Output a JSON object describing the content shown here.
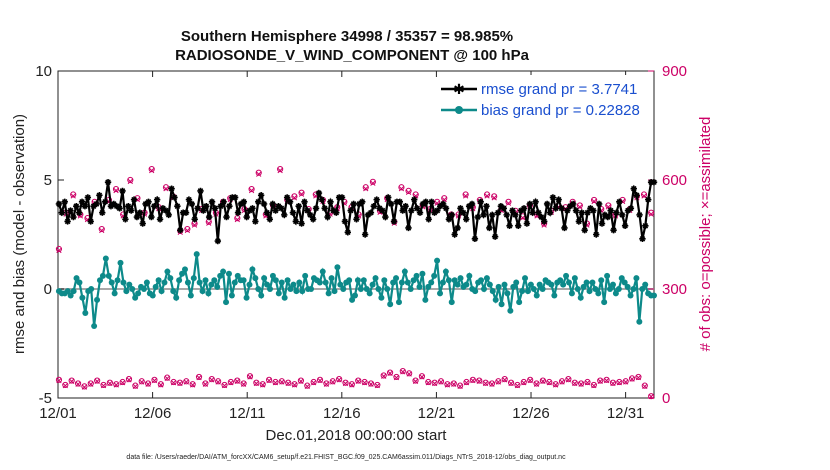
{
  "chart_data": {
    "type": "line",
    "title_line1": "Southern Hemisphere 34998 / 35357 = 98.985%",
    "title_line2": "RADIOSONDE_V_WIND_COMPONENT @ 100 hPa",
    "xlabel": "Dec.01,2018 00:00:00 start",
    "ylabel": "rmse and bias (model - observation)",
    "y2label": "# of obs: o=possible; ×=assimilated",
    "footnote": "data file: /Users/raeder/DAI/ATM_forcXX/CAM6_setup/f.e21.FHIST_BGC.f09_025.CAM6assim.011/Diags_NTrS_2018-12/obs_diag_output.nc",
    "xlim": [
      0,
      31.5
    ],
    "ylim": [
      -5,
      10
    ],
    "y2lim": [
      0,
      900
    ],
    "xticks": [
      0,
      5,
      10,
      15,
      20,
      25,
      30
    ],
    "xtick_labels": [
      "12/01",
      "12/06",
      "12/11",
      "12/16",
      "12/21",
      "12/26",
      "12/31"
    ],
    "yticks": [
      -5,
      0,
      5,
      10
    ],
    "ytick_labels": [
      "-5",
      "0",
      "5",
      "10"
    ],
    "y2ticks": [
      0,
      300,
      600,
      900
    ],
    "y2tick_labels": [
      "0",
      "300",
      "600",
      "900"
    ],
    "legend": [
      {
        "name": "rmse grand pr = 3.7741",
        "color": "#000000",
        "marker": "asterisk"
      },
      {
        "name": "bias grand pr = 0.22828",
        "color": "#0d8a8a",
        "marker": "circle"
      }
    ],
    "colors": {
      "rmse": "#000000",
      "bias": "#0d8a8a",
      "obs": "#cc0066",
      "zero_line": "#a8a8a8"
    },
    "series": [
      {
        "name": "rmse",
        "values": [
          3.9,
          3.5,
          4.0,
          3.1,
          3.6,
          3.3,
          3.8,
          3.5,
          4.0,
          3.8,
          4.2,
          3.1,
          3.8,
          3.9,
          4.3,
          3.5,
          4.0,
          4.9,
          3.8,
          3.9,
          3.8,
          3.7,
          4.5,
          3.2,
          3.8,
          3.6,
          4.1,
          3.3,
          3.5,
          3.0,
          3.9,
          4.0,
          3.3,
          3.8,
          4.1,
          3.2,
          3.7,
          3.6,
          3.4,
          4.6,
          4.2,
          3.8,
          2.7,
          3.5,
          3.5,
          4.1,
          3.9,
          3.2,
          3.7,
          4.5,
          3.6,
          3.8,
          3.3,
          4.0,
          3.7,
          2.2,
          3.8,
          4.0,
          3.3,
          3.8,
          4.2,
          4.2,
          3.5,
          3.9,
          4.0,
          3.3,
          3.6,
          3.7,
          3.1,
          4.0,
          4.3,
          3.9,
          3.5,
          3.2,
          3.9,
          3.6,
          3.8,
          3.7,
          3.4,
          4.2,
          4.0,
          3.5,
          3.1,
          3.8,
          3.0,
          4.0,
          3.6,
          3.4,
          3.2,
          3.7,
          4.4,
          4.1,
          3.7,
          3.3,
          4.0,
          3.6,
          3.5,
          4.2,
          4.2,
          3.1,
          2.6,
          3.6,
          3.9,
          3.2,
          3.9,
          4.0,
          2.5,
          3.4,
          3.5,
          3.8,
          4.1,
          3.7,
          3.6,
          3.3,
          4.2,
          3.9,
          3.1,
          4.0,
          4.0,
          3.6,
          3.8,
          2.8,
          3.6,
          4.1,
          3.7,
          3.5,
          3.9,
          4.0,
          3.2,
          4.0,
          3.5,
          3.6,
          3.8,
          3.9,
          3.7,
          3.2,
          3.4,
          2.5,
          2.8,
          3.7,
          3.5,
          3.2,
          3.8,
          3.9,
          2.3,
          3.3,
          4.0,
          3.4,
          3.8,
          2.8,
          3.4,
          2.4,
          3.5,
          3.8,
          3.7,
          3.4,
          2.9,
          3.6,
          3.4,
          2.9,
          3.6,
          3.7,
          3.0,
          3.9,
          3.5,
          4.0,
          3.5,
          3.3,
          3.1,
          3.9,
          3.5,
          4.2,
          3.7,
          4.1,
          3.7,
          2.8,
          3.6,
          3.8,
          3.9,
          3.6,
          3.1,
          3.5,
          2.7,
          3.5,
          3.7,
          3.6,
          2.5,
          3.9,
          3.0,
          3.4,
          3.3,
          3.6,
          2.7,
          3.5,
          4.0,
          3.4,
          2.9,
          3.6,
          3.7,
          4.6,
          4.3,
          3.4,
          2.3,
          2.9,
          4.1,
          4.9,
          4.9
        ]
      },
      {
        "name": "bias",
        "values": [
          -0.1,
          -0.2,
          -0.2,
          -0.1,
          -0.3,
          -0.1,
          0.5,
          0.3,
          -0.4,
          -1.1,
          -0.1,
          0.0,
          -1.7,
          -0.5,
          0.4,
          0.6,
          1.4,
          0.6,
          0.3,
          -0.2,
          0.4,
          1.2,
          0.3,
          -0.1,
          0.2,
          0.0,
          -0.4,
          -0.2,
          0.1,
          0.0,
          0.3,
          -0.2,
          -0.3,
          0.1,
          0.4,
          -0.1,
          0.3,
          0.8,
          0.5,
          -0.1,
          -0.4,
          0.4,
          0.7,
          0.9,
          0.3,
          -0.3,
          0.5,
          1.6,
          0.3,
          -0.1,
          0.4,
          -0.2,
          0.2,
          0.4,
          0.1,
          0.6,
          0.8,
          -0.6,
          0.7,
          -0.3,
          0.3,
          0.6,
          0.4,
          0.4,
          -0.4,
          0.2,
          0.9,
          0.5,
          0.0,
          -0.3,
          0.5,
          0.2,
          0.0,
          0.6,
          0.4,
          -0.2,
          0.3,
          -0.4,
          0.4,
          0.0,
          0.2,
          -0.1,
          0.3,
          -0.1,
          0.6,
          0.0,
          0.0,
          0.5,
          0.4,
          0.3,
          0.8,
          0.3,
          -0.2,
          0.5,
          -0.1,
          1.0,
          0.2,
          0.0,
          0.3,
          0.4,
          -0.5,
          -0.3,
          0.4,
          0.0,
          0.4,
          0.0,
          -0.2,
          0.2,
          0.5,
          0.0,
          -0.4,
          0.4,
          0.0,
          -0.7,
          0.3,
          0.5,
          -0.6,
          0.3,
          0.8,
          0.3,
          0.0,
          0.4,
          0.6,
          0.1,
          0.7,
          -0.5,
          0.1,
          0.3,
          0.6,
          1.3,
          -0.2,
          0.3,
          0.8,
          0.4,
          -0.6,
          0.4,
          0.2,
          0.5,
          0.1,
          0.2,
          0.6,
          0.0,
          -0.1,
          0.3,
          0.4,
          0.0,
          0.5,
          0.2,
          -0.1,
          -0.5,
          0.1,
          -0.7,
          0.2,
          -0.2,
          -1.0,
          0.1,
          0.3,
          -0.6,
          -0.1,
          0.5,
          -0.1,
          0.2,
          0.0,
          -0.3,
          0.2,
          0.0,
          0.4,
          0.3,
          0.2,
          -0.3,
          0.3,
          0.4,
          0.2,
          0.6,
          0.3,
          -0.2,
          0.5,
          0.0,
          -0.4,
          0.1,
          0.3,
          -0.1,
          0.3,
          0.0,
          -0.2,
          0.4,
          -0.6,
          0.6,
          0.0,
          0.2,
          -0.2,
          0.0,
          0.5,
          0.3,
          0.1,
          -0.3,
          0.0,
          0.5,
          -1.5,
          0.0,
          0.2,
          -0.2,
          -0.3,
          -0.3
        ]
      },
      {
        "name": "obs_possible",
        "values": [
          50,
          36,
          48,
          40,
          32,
          40,
          48,
          36,
          42,
          38,
          44,
          52,
          34,
          46,
          40,
          50,
          38,
          56,
          44,
          42,
          46,
          38,
          58,
          40,
          52,
          46,
          36,
          44,
          48,
          40,
          60,
          42,
          38,
          50,
          44,
          46,
          42,
          38,
          48,
          34,
          44,
          50,
          40,
          46,
          52,
          42,
          38,
          48,
          44,
          40,
          36,
          62,
          70,
          58,
          74,
          68,
          48,
          60,
          44,
          42,
          46,
          38,
          40,
          34,
          44,
          50,
          48,
          42,
          40,
          46,
          52,
          42,
          36,
          44,
          50,
          40,
          48,
          44,
          38,
          46,
          52,
          42,
          40,
          44,
          36,
          48,
          50,
          42,
          44,
          46,
          54,
          58,
          34,
          5
        ]
      },
      {
        "name": "obs_assimilated",
        "values": [
          48,
          34,
          46,
          38,
          30,
          38,
          46,
          34,
          40,
          36,
          42,
          50,
          32,
          44,
          38,
          48,
          36,
          54,
          42,
          40,
          44,
          36,
          56,
          38,
          50,
          44,
          34,
          42,
          46,
          38,
          58,
          40,
          36,
          48,
          42,
          44,
          40,
          36,
          46,
          32,
          42,
          48,
          38,
          44,
          50,
          40,
          36,
          46,
          42,
          38,
          34,
          60,
          68,
          56,
          72,
          66,
          46,
          58,
          42,
          40,
          44,
          36,
          38,
          32,
          42,
          48,
          46,
          40,
          38,
          44,
          50,
          40,
          34,
          42,
          48,
          38,
          46,
          42,
          36,
          44,
          50,
          40,
          38,
          42,
          34,
          46,
          48,
          40,
          42,
          44,
          52,
          56,
          32,
          4
        ]
      },
      {
        "name": "obs_possible_upper",
        "values": [
          410,
          510,
          560,
          505,
          495,
          540,
          465,
          545,
          575,
          505,
          600,
          550,
          510,
          630,
          525,
          580,
          555,
          460,
          465,
          480,
          520,
          485,
          510,
          540,
          550,
          495,
          520,
          575,
          620,
          505,
          530,
          630,
          545,
          555,
          565,
          520,
          560,
          545,
          510,
          525,
          540,
          525,
          505,
          580,
          595,
          515,
          550,
          485,
          580,
          570,
          560,
          530,
          520,
          540,
          550,
          505,
          505,
          560,
          525,
          545,
          560,
          555,
          520,
          540,
          515,
          500,
          530,
          505,
          480,
          515,
          530,
          525,
          540,
          530,
          480,
          545,
          520,
          530,
          505,
          545,
          520,
          555,
          560,
          510
        ]
      },
      {
        "name": "obs_assimilated_upper",
        "values": [
          406,
          506,
          556,
          501,
          491,
          536,
          461,
          541,
          571,
          501,
          596,
          546,
          506,
          626,
          521,
          576,
          551,
          456,
          461,
          476,
          516,
          481,
          506,
          536,
          546,
          491,
          516,
          571,
          616,
          501,
          526,
          626,
          541,
          551,
          561,
          516,
          556,
          541,
          506,
          521,
          536,
          521,
          501,
          576,
          591,
          511,
          546,
          481,
          576,
          566,
          556,
          526,
          516,
          536,
          546,
          501,
          501,
          556,
          521,
          541,
          556,
          551,
          516,
          536,
          511,
          496,
          526,
          501,
          476,
          511,
          526,
          521,
          536,
          526,
          476,
          541,
          516,
          526,
          501,
          541,
          516,
          551,
          556,
          506
        ]
      }
    ]
  }
}
